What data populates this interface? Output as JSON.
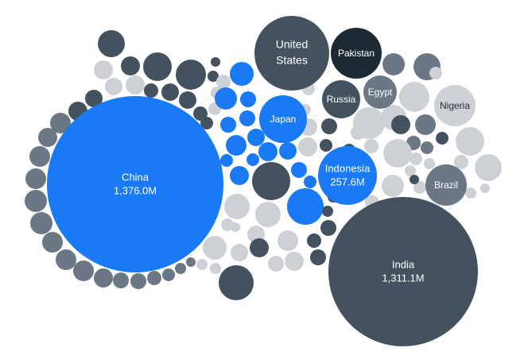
{
  "colors": {
    "highlight": "#1a7af5",
    "dark": "#44525f",
    "darker": "#1e2a33",
    "mid": "#6b7785",
    "light": "#cdd0d5",
    "label_on_dark": "#ffffff",
    "label_on_light": "#1e2a33"
  },
  "chart_data": {
    "type": "bubble",
    "title": "",
    "value_unit": "M",
    "labeled": [
      {
        "name": "China",
        "value_label": "1,376.0M",
        "value": 1376.0,
        "group": "highlight"
      },
      {
        "name": "India",
        "value_label": "1,311.1M",
        "value": 1311.1,
        "group": "dark"
      },
      {
        "name": "Indonesia",
        "value_label": "257.6M",
        "value": 257.6,
        "group": "highlight"
      },
      {
        "name": "United States",
        "value_label": "",
        "group": "dark"
      },
      {
        "name": "Pakistan",
        "value_label": "",
        "group": "darker"
      },
      {
        "name": "Russia",
        "value_label": "",
        "group": "dark"
      },
      {
        "name": "Egypt",
        "value_label": "",
        "group": "mid"
      },
      {
        "name": "Nigeria",
        "value_label": "",
        "group": "light"
      },
      {
        "name": "Japan",
        "value_label": "",
        "group": "highlight"
      },
      {
        "name": "Brazil",
        "value_label": "",
        "group": "mid"
      }
    ]
  }
}
